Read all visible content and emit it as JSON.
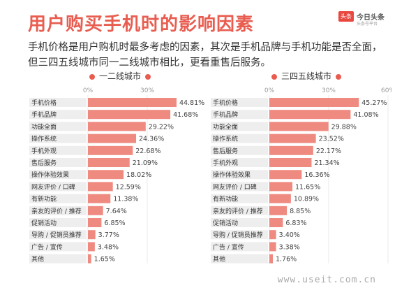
{
  "header": {
    "title": "用户购买手机时的影响因素",
    "logo_badge": "头条",
    "logo_name": "今日头条",
    "logo_sub": "头条号平台"
  },
  "description": [
    "手机价格是用户购机时最多考虑的因素，其次是手机品牌与手机功能是否全面，",
    "但三四五线城市同一二线城市相比，更看重售后服务。"
  ],
  "watermark": "www.useit.com.cn",
  "colors": {
    "accent": "#e85d50",
    "bar": "#ef8a80",
    "row_bg": "#eeeeee"
  },
  "chart_data": [
    {
      "type": "bar",
      "orientation": "horizontal",
      "title": "一二线城市",
      "x_ticks": [
        "0%",
        "30%"
      ],
      "xlim": [
        0,
        60
      ],
      "categories": [
        "手机价格",
        "手机品牌",
        "功能全面",
        "操作系统",
        "手机外观",
        "售后服务",
        "操作体验效果",
        "网友评价 / 口碑",
        "有新功能",
        "亲友的评价 / 推荐",
        "促销活动",
        "导购 / 促销员推荐",
        "广告 / 宣传",
        "其他"
      ],
      "values": [
        44.81,
        41.68,
        29.22,
        24.36,
        22.68,
        21.09,
        18.02,
        12.59,
        11.38,
        7.64,
        6.85,
        3.77,
        3.48,
        1.65
      ],
      "value_labels": [
        "44.81",
        "41.68",
        "29.22",
        "24.36",
        "22.68",
        "21.09",
        "18.02",
        "12.59",
        "11.38",
        "7.64",
        "6.85",
        "3.77",
        "3.48",
        "1.65"
      ],
      "unit": "%"
    },
    {
      "type": "bar",
      "orientation": "horizontal",
      "title": "三四五线城市",
      "x_ticks": [
        "0%",
        "30%",
        "60%"
      ],
      "xlim": [
        0,
        60
      ],
      "categories": [
        "手机价格",
        "手机品牌",
        "功能全面",
        "操作系统",
        "售后服务",
        "手机外观",
        "操作体验效果",
        "网友评价 / 口碑",
        "有新功能",
        "亲友的评价 / 推荐",
        "促销活动",
        "导购 / 促销员推荐",
        "广告 / 宣传",
        "其他"
      ],
      "values": [
        45.27,
        41.08,
        29.88,
        23.52,
        22.17,
        21.34,
        16.36,
        11.65,
        10.89,
        8.85,
        6.83,
        3.4,
        3.38,
        1.76
      ],
      "value_labels": [
        "45.27",
        "41.08",
        "29.88",
        "23.52",
        "22.17",
        "21.34",
        "16.36",
        "11.65",
        "10.89",
        "8.85",
        "6.83",
        "3.40",
        "3.38",
        "1.76"
      ],
      "unit": "%"
    }
  ]
}
